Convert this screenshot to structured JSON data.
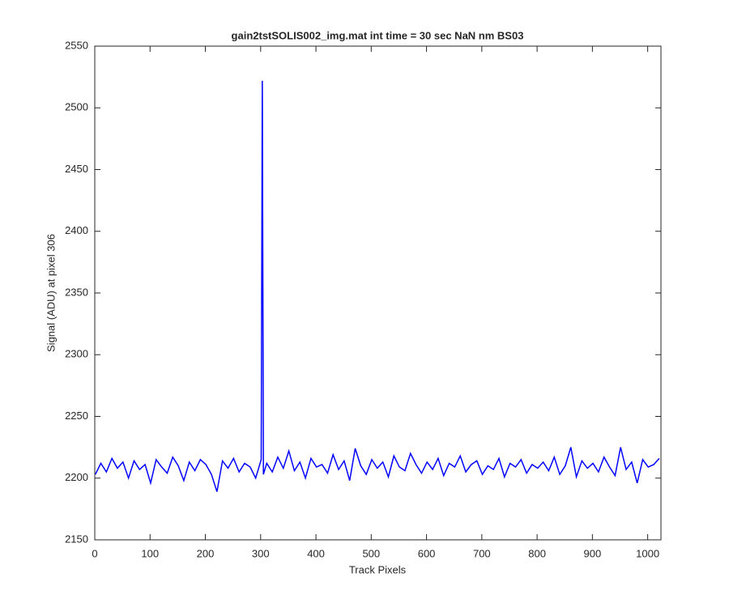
{
  "chart_data": {
    "type": "line",
    "title": "gain2tstSOLIS002_img.mat int time = 30 sec  NaN nm BS03",
    "x_label": "Track Pixels",
    "y_label": "Signal (ADU) at pixel 306",
    "x": [
      1,
      11,
      21,
      31,
      41,
      51,
      61,
      71,
      81,
      91,
      101,
      111,
      121,
      131,
      141,
      151,
      161,
      171,
      181,
      191,
      201,
      211,
      221,
      231,
      241,
      251,
      261,
      271,
      281,
      291,
      301,
      303,
      305,
      311,
      321,
      331,
      341,
      351,
      361,
      371,
      381,
      391,
      401,
      411,
      421,
      431,
      441,
      451,
      461,
      471,
      481,
      491,
      501,
      511,
      521,
      531,
      541,
      551,
      561,
      571,
      581,
      591,
      601,
      611,
      621,
      631,
      641,
      651,
      661,
      671,
      681,
      691,
      701,
      711,
      721,
      731,
      741,
      751,
      761,
      771,
      781,
      791,
      801,
      811,
      821,
      831,
      841,
      851,
      861,
      871,
      881,
      891,
      901,
      911,
      921,
      931,
      941,
      951,
      961,
      971,
      981,
      991,
      1001,
      1011,
      1021
    ],
    "series": [
      {
        "name": "signal",
        "color": "#0000ff",
        "values": [
          2203,
          2212,
          2205,
          2216,
          2208,
          2213,
          2200,
          2214,
          2207,
          2211,
          2196,
          2215,
          2209,
          2204,
          2217,
          2210,
          2198,
          2213,
          2206,
          2215,
          2211,
          2203,
          2189,
          2214,
          2208,
          2216,
          2205,
          2212,
          2209,
          2200,
          2215,
          2522,
          2203,
          2212,
          2205,
          2217,
          2208,
          2222,
          2206,
          2213,
          2200,
          2216,
          2209,
          2211,
          2204,
          2219,
          2207,
          2214,
          2198,
          2224,
          2210,
          2203,
          2215,
          2208,
          2213,
          2201,
          2218,
          2209,
          2206,
          2220,
          2211,
          2204,
          2213,
          2207,
          2216,
          2202,
          2212,
          2209,
          2218,
          2205,
          2211,
          2214,
          2203,
          2210,
          2207,
          2216,
          2201,
          2212,
          2209,
          2215,
          2204,
          2211,
          2208,
          2213,
          2206,
          2217,
          2203,
          2210,
          2225,
          2201,
          2214,
          2208,
          2212,
          2205,
          2217,
          2209,
          2202,
          2225,
          2207,
          2213,
          2196,
          2215,
          2209,
          2211,
          2216
        ]
      }
    ],
    "xlim": [
      0,
      1024
    ],
    "ylim": [
      2150,
      2550
    ],
    "xticks": [
      0,
      100,
      200,
      300,
      400,
      500,
      600,
      700,
      800,
      900,
      1000
    ],
    "yticks": [
      2150,
      2200,
      2250,
      2300,
      2350,
      2400,
      2450,
      2500,
      2550
    ],
    "grid": false
  }
}
